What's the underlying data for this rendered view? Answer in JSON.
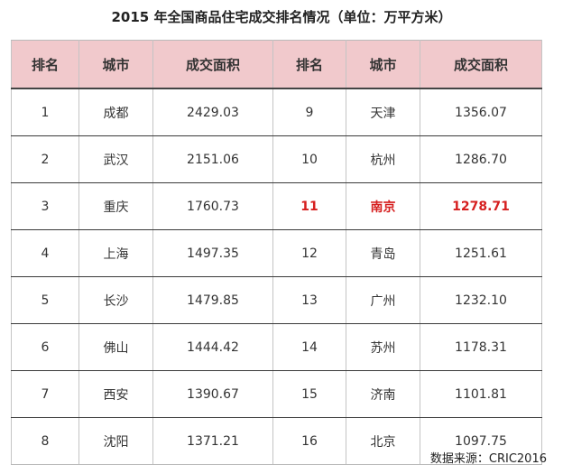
{
  "title": "2015 年全国商品住宅成交排名情况（单位：万平方米）",
  "headers": [
    "排名",
    "城市",
    "成交面积",
    "排名",
    "城市",
    "成交面积"
  ],
  "rows": [
    [
      "1",
      "成都",
      "2429.03",
      "9",
      "天津",
      "1356.07"
    ],
    [
      "2",
      "武汉",
      "2151.06",
      "10",
      "杭州",
      "1286.70"
    ],
    [
      "3",
      "重庆",
      "1760.73",
      "11",
      "南京",
      "1278.71"
    ],
    [
      "4",
      "上海",
      "1497.35",
      "12",
      "青岛",
      "1251.61"
    ],
    [
      "5",
      "长沙",
      "1479.85",
      "13",
      "广州",
      "1232.10"
    ],
    [
      "6",
      "佛山",
      "1444.42",
      "14",
      "苏州",
      "1178.31"
    ],
    [
      "7",
      "西安",
      "1390.67",
      "15",
      "济南",
      "1101.81"
    ],
    [
      "8",
      "沈阳",
      "1371.21",
      "16",
      "北京",
      "1097.75"
    ]
  ],
  "highlight": {
    "row": 2,
    "side": "right",
    "color": "#d62020"
  },
  "source": "数据来源：CRIC2016"
}
